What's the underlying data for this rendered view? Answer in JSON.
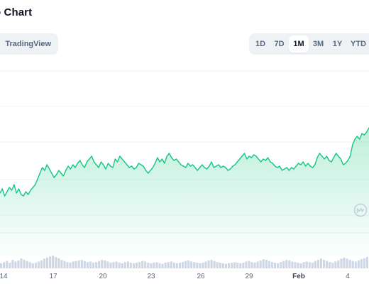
{
  "header": {
    "title": "o Chart"
  },
  "toolbar": {
    "tradingview_label": "TradingView",
    "ranges": [
      "1D",
      "7D",
      "1M",
      "3M",
      "1Y",
      "YTD"
    ],
    "active_range": "1M"
  },
  "colors": {
    "line": "#16c784",
    "fill": "#16c784",
    "volume": "#cfd6e4",
    "grid": "#eff2f5"
  },
  "watermark": {
    "icon": "coinmarketcap-logo-icon"
  },
  "chart_data": {
    "type": "area",
    "x_tick_labels": [
      "14",
      "17",
      "20",
      "23",
      "26",
      "29",
      "Feb",
      "4"
    ],
    "series": [
      {
        "values": [
          0.44,
          0.47,
          0.42,
          0.45,
          0.48,
          0.46,
          0.5,
          0.44,
          0.47,
          0.43,
          0.42,
          0.45,
          0.43,
          0.46,
          0.48,
          0.5,
          0.54,
          0.58,
          0.62,
          0.6,
          0.64,
          0.61,
          0.58,
          0.55,
          0.57,
          0.6,
          0.58,
          0.56,
          0.6,
          0.63,
          0.61,
          0.64,
          0.62,
          0.65,
          0.67,
          0.64,
          0.62,
          0.66,
          0.68,
          0.7,
          0.66,
          0.64,
          0.62,
          0.66,
          0.64,
          0.61,
          0.65,
          0.63,
          0.62,
          0.68,
          0.66,
          0.7,
          0.68,
          0.66,
          0.64,
          0.62,
          0.63,
          0.61,
          0.62,
          0.65,
          0.64,
          0.63,
          0.6,
          0.58,
          0.6,
          0.62,
          0.65,
          0.69,
          0.66,
          0.68,
          0.65,
          0.7,
          0.72,
          0.69,
          0.67,
          0.68,
          0.66,
          0.64,
          0.63,
          0.62,
          0.65,
          0.63,
          0.64,
          0.62,
          0.6,
          0.62,
          0.64,
          0.62,
          0.61,
          0.63,
          0.66,
          0.62,
          0.63,
          0.64,
          0.62,
          0.63,
          0.62,
          0.6,
          0.61,
          0.63,
          0.64,
          0.66,
          0.68,
          0.7,
          0.72,
          0.68,
          0.7,
          0.69,
          0.71,
          0.7,
          0.68,
          0.66,
          0.68,
          0.67,
          0.69,
          0.66,
          0.65,
          0.63,
          0.62,
          0.63,
          0.6,
          0.61,
          0.62,
          0.6,
          0.62,
          0.61,
          0.63,
          0.65,
          0.64,
          0.66,
          0.63,
          0.65,
          0.63,
          0.62,
          0.64,
          0.69,
          0.72,
          0.7,
          0.68,
          0.7,
          0.67,
          0.66,
          0.69,
          0.72,
          0.7,
          0.68,
          0.64,
          0.65,
          0.67,
          0.7,
          0.78,
          0.82,
          0.84,
          0.82,
          0.86,
          0.85,
          0.87,
          0.9
        ]
      }
    ],
    "volume": [
      0.18,
      0.22,
      0.26,
      0.2,
      0.3,
      0.24,
      0.28,
      0.35,
      0.3,
      0.26,
      0.22,
      0.18,
      0.2,
      0.24,
      0.28,
      0.34,
      0.38,
      0.42,
      0.45,
      0.4,
      0.36,
      0.3,
      0.26,
      0.22,
      0.2,
      0.24,
      0.26,
      0.28,
      0.3,
      0.26,
      0.22,
      0.24,
      0.2,
      0.22,
      0.26,
      0.3,
      0.28,
      0.24,
      0.2,
      0.22,
      0.24,
      0.2,
      0.18,
      0.22,
      0.24,
      0.2,
      0.18,
      0.2,
      0.22,
      0.26,
      0.24,
      0.2,
      0.18,
      0.2,
      0.22,
      0.18,
      0.16,
      0.2,
      0.22,
      0.24,
      0.2,
      0.18,
      0.2,
      0.22,
      0.26,
      0.28,
      0.24,
      0.22,
      0.2,
      0.18,
      0.2,
      0.24,
      0.28,
      0.3,
      0.26,
      0.22,
      0.2,
      0.18,
      0.16,
      0.18,
      0.2,
      0.22,
      0.2,
      0.18,
      0.2,
      0.24,
      0.26,
      0.22,
      0.2,
      0.24,
      0.28,
      0.32,
      0.3,
      0.26,
      0.22,
      0.2,
      0.18,
      0.22,
      0.26,
      0.3,
      0.28,
      0.24,
      0.22,
      0.2,
      0.18,
      0.22,
      0.24,
      0.22,
      0.2,
      0.26,
      0.3,
      0.34,
      0.3,
      0.26,
      0.22,
      0.2,
      0.24,
      0.28,
      0.34,
      0.38,
      0.34,
      0.3,
      0.26,
      0.24,
      0.28,
      0.32,
      0.36,
      0.4
    ]
  }
}
